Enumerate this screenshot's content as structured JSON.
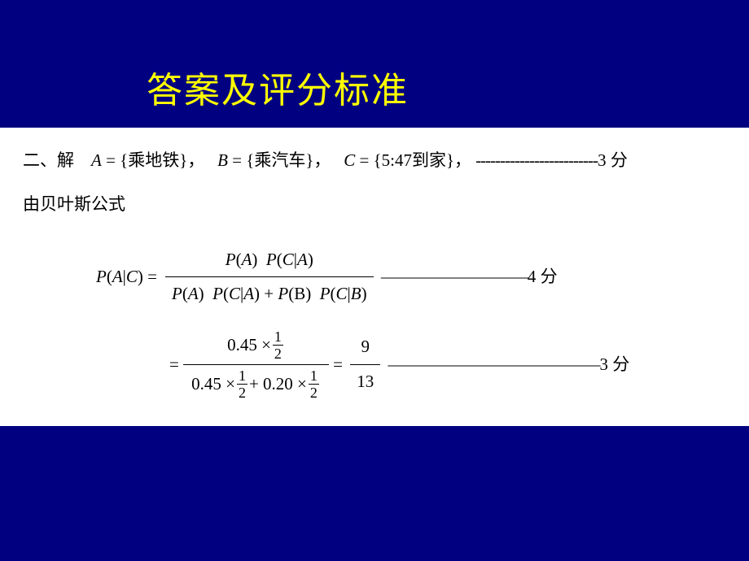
{
  "title": "答案及评分标准",
  "panel_bg": "#ffffff",
  "slide_bg": "#000080",
  "title_color": "#ffff00",
  "text_color": "#000000",
  "line1": {
    "prefix": "二、解",
    "A_lhs": "A",
    "A_rhs": " = {乘地铁}，",
    "B_lhs": "B",
    "B_rhs": " = {乘汽车}，",
    "C_lhs": "C",
    "C_rhs": " = {5:47到家}，",
    "dashes": "-------------------------",
    "score": "3 分"
  },
  "line2": "由贝叶斯公式",
  "formula1": {
    "lhs": "P(A|C) =",
    "numerator": "P(A)  P(C|A)",
    "denominator": "P(A)  P(C|A) + P(B)  P(C|B)",
    "dashes": "—————————",
    "score": "4 分"
  },
  "formula2": {
    "eq": "=",
    "num_a": "0.45 ×",
    "num_frac_n": "1",
    "num_frac_d": "2",
    "den_a": "0.45 ×",
    "den_frac1_n": "1",
    "den_frac1_d": "2",
    "den_plus": " + 0.20 ×",
    "den_frac2_n": "1",
    "den_frac2_d": "2",
    "eq2": "=",
    "result_n": "9",
    "result_d": "13",
    "dashes": "—————————————",
    "score": "3 分"
  }
}
